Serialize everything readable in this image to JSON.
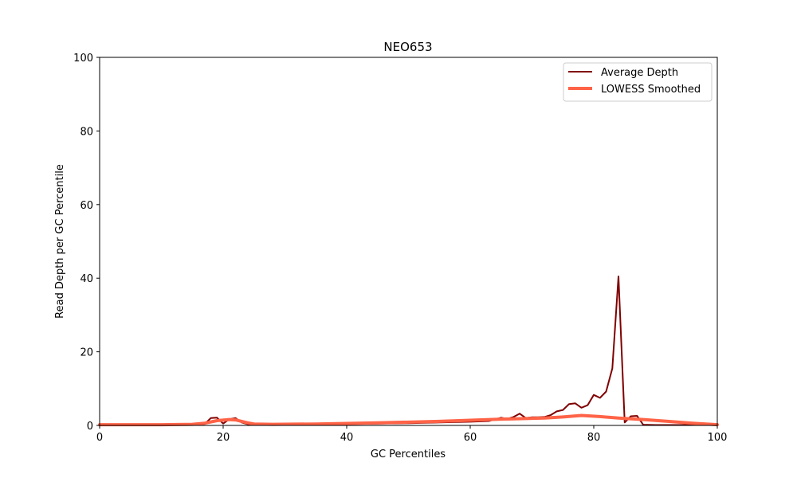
{
  "chart_data": {
    "type": "line",
    "title": "NEO653",
    "xlabel": "GC Percentiles",
    "ylabel": "Read Depth per GC Percentile",
    "xlim": [
      0,
      100
    ],
    "ylim": [
      0,
      100
    ],
    "xticks": [
      0,
      20,
      40,
      60,
      80,
      100
    ],
    "yticks": [
      0,
      20,
      40,
      60,
      80,
      100
    ],
    "grid": false,
    "legend_position": "top-right",
    "series": [
      {
        "name": "Average Depth",
        "color": "#800000",
        "x": [
          0,
          5,
          10,
          11,
          12,
          15,
          17,
          18,
          19,
          20,
          21,
          22,
          23,
          24,
          25,
          30,
          35,
          40,
          45,
          50,
          55,
          60,
          63,
          65,
          66,
          67,
          68,
          69,
          70,
          71,
          72,
          73,
          74,
          75,
          76,
          77,
          78,
          79,
          80,
          81,
          82,
          83,
          84,
          85,
          86,
          87,
          88,
          90,
          95,
          100
        ],
        "y": [
          0.2,
          0.2,
          0.2,
          0.4,
          0.2,
          0.2,
          0.4,
          2.0,
          2.1,
          0.5,
          1.7,
          2.0,
          0.8,
          0.3,
          0.2,
          0.2,
          0.3,
          0.4,
          0.5,
          0.6,
          0.8,
          1.0,
          1.2,
          2.1,
          1.8,
          2.3,
          3.2,
          2.0,
          2.2,
          2.2,
          2.3,
          2.8,
          3.8,
          4.2,
          5.8,
          6.0,
          4.8,
          5.5,
          8.3,
          7.5,
          9.2,
          15.5,
          40.5,
          0.8,
          2.5,
          2.6,
          0.2,
          0.1,
          0.1,
          0.1
        ]
      },
      {
        "name": "LOWESS Smoothed",
        "color": "#ff6347",
        "x": [
          0,
          5,
          10,
          15,
          17,
          19,
          21,
          22,
          23,
          24,
          25,
          28,
          35,
          45,
          55,
          65,
          72,
          75,
          78,
          81,
          84,
          88,
          92,
          96,
          100
        ],
        "y": [
          0.2,
          0.2,
          0.2,
          0.3,
          0.6,
          1.3,
          1.6,
          1.5,
          1.1,
          0.7,
          0.4,
          0.3,
          0.4,
          0.7,
          1.1,
          1.7,
          2.0,
          2.3,
          2.7,
          2.4,
          2.0,
          1.6,
          1.1,
          0.6,
          0.2
        ]
      }
    ]
  }
}
